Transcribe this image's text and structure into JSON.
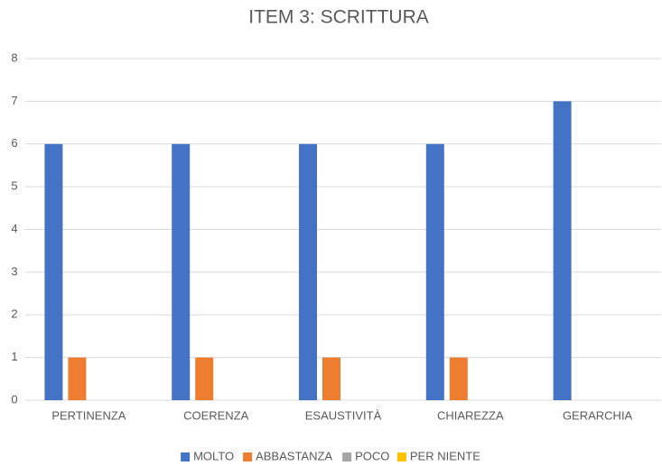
{
  "chart_data": {
    "type": "bar",
    "title": "ITEM 3: SCRITTURA",
    "categories": [
      "PERTINENZA",
      "COERENZA",
      "ESAUSTIVITÀ",
      "CHIAREZZA",
      "GERARCHIA"
    ],
    "series": [
      {
        "name": "MOLTO",
        "color": "#4472c4",
        "values": [
          6,
          6,
          6,
          6,
          7
        ]
      },
      {
        "name": "ABBASTANZA",
        "color": "#ed7d31",
        "values": [
          1,
          1,
          1,
          1,
          0
        ]
      },
      {
        "name": "POCO",
        "color": "#a5a5a5",
        "values": [
          0,
          0,
          0,
          0,
          0
        ]
      },
      {
        "name": "PER NIENTE",
        "color": "#ffc000",
        "values": [
          0,
          0,
          0,
          0,
          0
        ]
      }
    ],
    "ylim": [
      0,
      8
    ],
    "yticks": [
      0,
      1,
      2,
      3,
      4,
      5,
      6,
      7,
      8
    ],
    "grid": true,
    "legend": "bottom"
  }
}
